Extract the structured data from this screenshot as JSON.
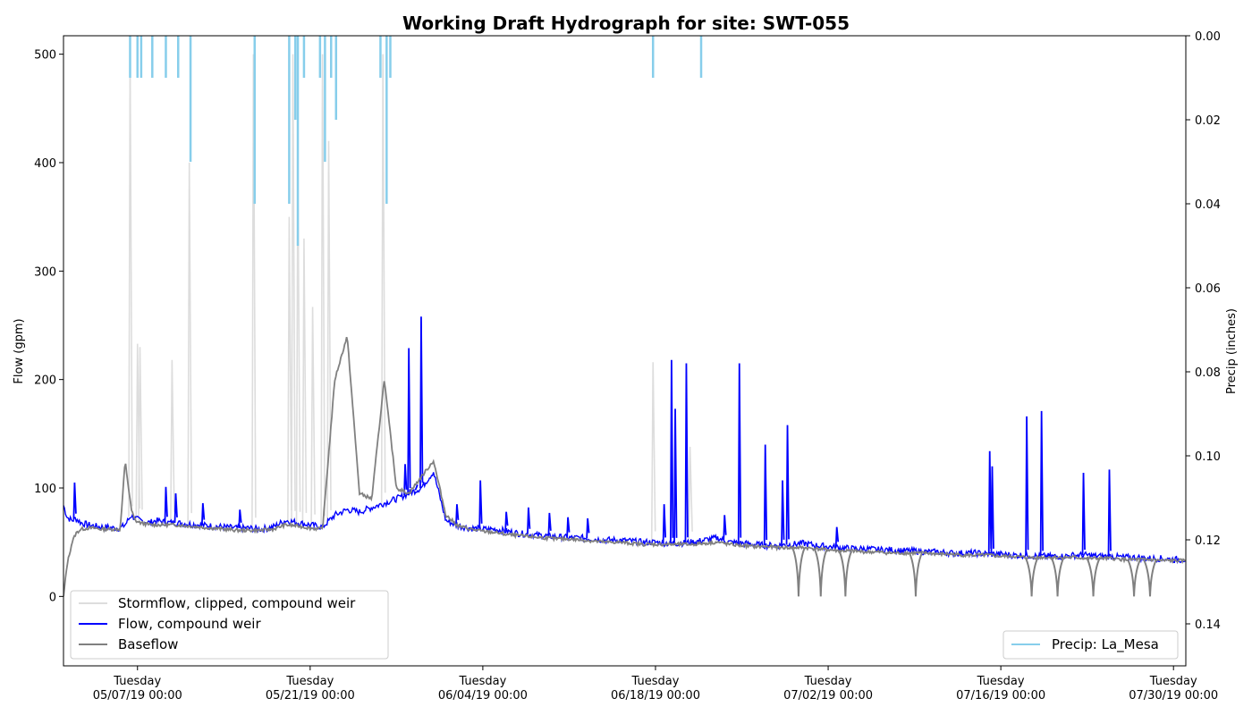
{
  "chart_data": {
    "type": "line",
    "title": "Working Draft Hydrograph for site: SWT-055",
    "ylabel_left": "Flow (gpm)",
    "ylabel_right": "Precip (inches)",
    "ylim_left": [
      -64,
      517
    ],
    "ylim_right_inverted": [
      0.15,
      0.0
    ],
    "yticks_left": [
      0,
      100,
      200,
      300,
      400,
      500
    ],
    "yticks_right": [
      "0.00",
      "0.02",
      "0.04",
      "0.06",
      "0.08",
      "0.10",
      "0.12",
      "0.14"
    ],
    "xlim": [
      "2019-05-01 00:00",
      "2019-07-31 00:00"
    ],
    "xticks": [
      {
        "line1": "Tuesday",
        "line2": "05/07/19 00:00"
      },
      {
        "line1": "Tuesday",
        "line2": "05/21/19 00:00"
      },
      {
        "line1": "Tuesday",
        "line2": "06/04/19 00:00"
      },
      {
        "line1": "Tuesday",
        "line2": "06/18/19 00:00"
      },
      {
        "line1": "Tuesday",
        "line2": "07/02/19 00:00"
      },
      {
        "line1": "Tuesday",
        "line2": "07/16/19 00:00"
      },
      {
        "line1": "Tuesday",
        "line2": "07/30/19 00:00"
      }
    ],
    "legend_left": {
      "placement": "lower-left",
      "entries": [
        {
          "name": "Stormflow, clipped, compound weir",
          "color": "#dddddd"
        },
        {
          "name": "Flow, compound weir",
          "color": "#0000ff"
        },
        {
          "name": "Baseflow",
          "color": "#808080"
        }
      ]
    },
    "legend_right": {
      "placement": "lower-right",
      "entries": [
        {
          "name": "Precip: La_Mesa",
          "color": "#87ceeb"
        }
      ]
    },
    "series": [
      {
        "name": "Flow, compound weir",
        "color": "#0000ff",
        "x_days": [
          0,
          0.3,
          0.7,
          1,
          1.4,
          2,
          2.5,
          3,
          3.5,
          4,
          4.6,
          5,
          5.5,
          5.8,
          6.2,
          6.6,
          7,
          7.5,
          8,
          8.5,
          9,
          10,
          11,
          12,
          13,
          14,
          15,
          16,
          17,
          18,
          19,
          20,
          21,
          22,
          23,
          24,
          25,
          26,
          27,
          28,
          29,
          30,
          31,
          32,
          33,
          34,
          35,
          36,
          37,
          38,
          39,
          40,
          41,
          42,
          43,
          44,
          45,
          46,
          47,
          48,
          49,
          50,
          51,
          52,
          53,
          54,
          55,
          56,
          57,
          58,
          59,
          60,
          61,
          62,
          63,
          64,
          65,
          66,
          67,
          68,
          69,
          70,
          71,
          72,
          73,
          74,
          75,
          76,
          77,
          78,
          79,
          80,
          81,
          82,
          83,
          84,
          85,
          86,
          87,
          88,
          89,
          90,
          91
        ],
        "values": [
          84,
          73,
          70,
          72,
          68,
          66,
          65,
          64,
          64,
          63,
          63,
          66,
          75,
          72,
          70,
          69,
          68,
          70,
          69,
          68,
          68,
          67,
          66,
          65,
          64,
          63,
          63,
          62,
          64,
          70,
          68,
          66,
          64,
          75,
          80,
          78,
          82,
          86,
          90,
          95,
          100,
          115,
          70,
          65,
          63,
          62,
          62,
          60,
          58,
          57,
          56,
          55,
          54,
          54,
          53,
          52,
          52,
          51,
          50,
          50,
          49,
          49,
          50,
          52,
          54,
          50,
          49,
          48,
          47,
          47,
          48,
          49,
          47,
          46,
          45,
          44,
          44,
          43,
          43,
          42,
          42,
          41,
          41,
          40,
          40,
          40,
          39,
          39,
          38,
          38,
          37,
          37,
          37,
          38,
          38,
          37,
          37,
          36,
          36,
          35,
          35,
          34,
          34
        ]
      },
      {
        "name": "Baseflow",
        "color": "#808080",
        "x_days": [
          0,
          0.3,
          0.7,
          1,
          1.4,
          2,
          2.5,
          3,
          3.5,
          4,
          4.6,
          5,
          5.5,
          5.8,
          6.2,
          6.6,
          7,
          7.5,
          8,
          8.5,
          9,
          10,
          11,
          12,
          13,
          14,
          15,
          16,
          17,
          18,
          19,
          20,
          21,
          22,
          23,
          24,
          25,
          26,
          27,
          28,
          29,
          30,
          31,
          32,
          33,
          34,
          35,
          36,
          37,
          38,
          39,
          40,
          41,
          42,
          43,
          44,
          45,
          46,
          47,
          48,
          49,
          50,
          51,
          52,
          53,
          54,
          55,
          56,
          57,
          58,
          59,
          60,
          61,
          62,
          63,
          64,
          65,
          66,
          67,
          68,
          69,
          70,
          71,
          72,
          73,
          74,
          75,
          76,
          77,
          78,
          79,
          80,
          81,
          82,
          83,
          84,
          85,
          86,
          87,
          88,
          89,
          90,
          91
        ],
        "values": [
          0,
          30,
          50,
          58,
          62,
          63,
          63,
          62,
          62,
          62,
          62,
          125,
          80,
          70,
          68,
          67,
          66,
          66,
          66,
          66,
          66,
          65,
          64,
          63,
          62,
          61,
          61,
          61,
          62,
          66,
          65,
          63,
          62,
          200,
          240,
          95,
          90,
          200,
          100,
          95,
          110,
          125,
          75,
          65,
          62,
          60,
          59,
          57,
          56,
          55,
          54,
          53,
          53,
          52,
          51,
          50,
          50,
          49,
          48,
          48,
          48,
          48,
          48,
          49,
          50,
          48,
          47,
          46,
          46,
          45,
          45,
          45,
          44,
          43,
          42,
          42,
          41,
          41,
          40,
          40,
          40,
          40,
          39,
          39,
          38,
          38,
          38,
          37,
          37,
          36,
          36,
          36,
          36,
          36,
          35,
          35,
          35,
          34,
          34,
          34,
          33,
          33,
          33
        ]
      },
      {
        "name": "Stormflow, clipped, compound weir",
        "color": "#dddddd",
        "peaks": [
          {
            "day": 5.4,
            "value": 500
          },
          {
            "day": 6.0,
            "value": 233
          },
          {
            "day": 6.2,
            "value": 230
          },
          {
            "day": 8.8,
            "value": 218
          },
          {
            "day": 10.2,
            "value": 400
          },
          {
            "day": 15.4,
            "value": 500
          },
          {
            "day": 18.3,
            "value": 350
          },
          {
            "day": 18.6,
            "value": 500
          },
          {
            "day": 19.0,
            "value": 400
          },
          {
            "day": 19.5,
            "value": 330
          },
          {
            "day": 20.2,
            "value": 267
          },
          {
            "day": 21.0,
            "value": 500
          },
          {
            "day": 21.5,
            "value": 420
          },
          {
            "day": 25.9,
            "value": 500
          },
          {
            "day": 47.8,
            "value": 216
          },
          {
            "day": 50.8,
            "value": 138
          }
        ]
      }
    ],
    "precip": {
      "name": "Precip: La_Mesa",
      "color": "#87ceeb",
      "events": [
        {
          "day": 5.4,
          "value": 0.01
        },
        {
          "day": 6.0,
          "value": 0.01
        },
        {
          "day": 6.3,
          "value": 0.01
        },
        {
          "day": 7.2,
          "value": 0.01
        },
        {
          "day": 8.3,
          "value": 0.01
        },
        {
          "day": 9.3,
          "value": 0.01
        },
        {
          "day": 10.3,
          "value": 0.03
        },
        {
          "day": 15.5,
          "value": 0.04
        },
        {
          "day": 18.3,
          "value": 0.04
        },
        {
          "day": 18.8,
          "value": 0.02
        },
        {
          "day": 19.0,
          "value": 0.05
        },
        {
          "day": 19.5,
          "value": 0.01
        },
        {
          "day": 20.8,
          "value": 0.01
        },
        {
          "day": 21.2,
          "value": 0.03
        },
        {
          "day": 21.7,
          "value": 0.01
        },
        {
          "day": 22.1,
          "value": 0.02
        },
        {
          "day": 25.7,
          "value": 0.01
        },
        {
          "day": 26.2,
          "value": 0.04
        },
        {
          "day": 26.5,
          "value": 0.01
        },
        {
          "day": 47.8,
          "value": 0.01
        },
        {
          "day": 51.7,
          "value": 0.01
        }
      ]
    }
  }
}
